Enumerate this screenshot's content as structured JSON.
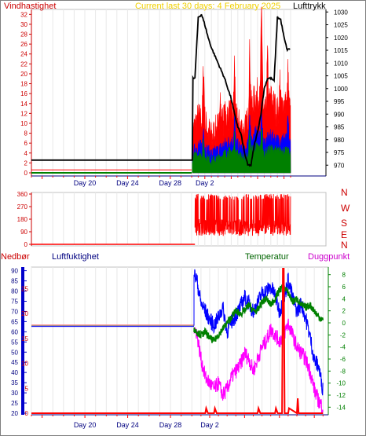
{
  "chart_data": [
    {
      "type": "line",
      "title": "Current last 30 days: 4 February 2025",
      "ylabel_left": "Vindhastighet",
      "ylabel_right": "Lufttrykk",
      "left_ticks": [
        0,
        2,
        4,
        6,
        8,
        10,
        12,
        14,
        16,
        18,
        20,
        22,
        24,
        26,
        28,
        30,
        32
      ],
      "right_ticks": [
        970,
        975,
        980,
        985,
        990,
        995,
        1000,
        1005,
        1010,
        1015,
        1020,
        1025,
        1030
      ],
      "x_tick_labels": [
        "Day 20",
        "Day 24",
        "Day 28",
        "Day 2"
      ],
      "xlim_days": [
        0,
        30
      ],
      "ylim_left": [
        0,
        33
      ],
      "ylim_right": [
        967,
        1031
      ],
      "series": [
        {
          "role": "pressure",
          "color": "#000000",
          "x": [
            0,
            15.1,
            15.1,
            15.5,
            16,
            16.5,
            17,
            17.5,
            18,
            18.5,
            19,
            19.5,
            20,
            20.5,
            21,
            21.5,
            22,
            22.5,
            23,
            23.5,
            24,
            24.5,
            25,
            25.5,
            26,
            26.5,
            27,
            27.5,
            28,
            28.5,
            29,
            29.5,
            30
          ],
          "y": [
            972,
            972,
            1004,
            1004,
            1028,
            1029,
            1025,
            1020,
            1016,
            1013,
            1010,
            1007,
            1004,
            1000,
            996,
            990,
            985,
            982,
            975,
            970,
            970,
            978,
            983,
            990,
            1000,
            1004,
            1004,
            1003,
            1028,
            1027,
            1020,
            1015,
            1016
          ]
        },
        {
          "role": "gust",
          "color": "#ff0000",
          "x": [
            0,
            15,
            15.1,
            16,
            17,
            18,
            19,
            20,
            21,
            22,
            23,
            24,
            25,
            26,
            27,
            28,
            29,
            30
          ],
          "y": [
            0.6,
            0.6,
            7,
            10,
            9,
            6,
            8,
            10,
            11,
            9,
            7,
            12,
            15,
            10,
            14,
            11,
            13,
            11
          ],
          "peaks": [
            [
              16.8,
              21
            ],
            [
              19.3,
              16
            ],
            [
              21.5,
              21
            ],
            [
              23.8,
              24
            ],
            [
              25.6,
              33
            ],
            [
              26.5,
              23
            ],
            [
              28.4,
              19
            ],
            [
              29.6,
              20
            ]
          ]
        },
        {
          "role": "mean-wind",
          "color": "#0000ff",
          "x": [
            0,
            15,
            15.1,
            16,
            17,
            18,
            19,
            20,
            21,
            22,
            23,
            24,
            25,
            26,
            27,
            28,
            29,
            30
          ],
          "y": [
            0.2,
            0.2,
            3.5,
            5,
            4.5,
            3.2,
            4,
            5.2,
            6,
            5,
            3.5,
            6.5,
            8,
            5.5,
            7,
            6,
            6.5,
            5.5
          ],
          "peaks": [
            [
              16.8,
              9
            ],
            [
              21.5,
              11
            ],
            [
              23.8,
              12
            ],
            [
              25.6,
              13
            ],
            [
              29.6,
              11
            ]
          ]
        },
        {
          "role": "min-wind",
          "color": "#008000",
          "x": [
            0,
            15,
            15.1,
            16,
            17,
            18,
            19,
            20,
            21,
            22,
            23,
            24,
            25,
            26,
            27,
            28,
            29,
            30
          ],
          "y": [
            0,
            0,
            2.5,
            3.5,
            3,
            2,
            2.5,
            3.5,
            4,
            3.5,
            2.2,
            4.2,
            5,
            3.5,
            4.5,
            4,
            4.2,
            3.5
          ],
          "peaks": [
            [
              16.8,
              6
            ],
            [
              21.5,
              7
            ],
            [
              23.8,
              8
            ],
            [
              25.6,
              9
            ]
          ]
        }
      ]
    },
    {
      "type": "scatter",
      "title": "",
      "right_labels": [
        "N",
        "W",
        "S",
        "E",
        "N"
      ],
      "left_ticks": [
        0,
        90,
        180,
        270,
        360
      ],
      "ylim": [
        0,
        360
      ],
      "xlim_days": [
        0,
        30
      ],
      "series": [
        {
          "role": "wind-direction",
          "color": "#ff0000",
          "flat_value": 0,
          "flat_until_day": 15.5,
          "band_start_day": 15.5,
          "band_low": 60,
          "band_high": 360,
          "band_typical": 120
        }
      ]
    },
    {
      "type": "line",
      "title": "",
      "labels": {
        "precip": "Nedbør",
        "humidity": "Luftfuktighet",
        "temperature": "Temperatur",
        "dewpoint": "Duggpunkt"
      },
      "humidity_ticks": [
        20,
        25,
        30,
        35,
        40,
        45,
        50,
        55,
        60,
        65,
        70,
        75,
        80,
        85,
        90
      ],
      "precip_ticks": [
        0,
        5,
        10,
        15,
        20,
        25
      ],
      "temp_ticks": [
        -14,
        -12,
        -10,
        -8,
        -6,
        -4,
        -2,
        0,
        2,
        4,
        6,
        8
      ],
      "x_tick_labels": [
        "Day 20",
        "Day 24",
        "Day 28",
        "Day 2"
      ],
      "xlim_days": [
        0,
        30
      ],
      "ylim_humidity": [
        20,
        91
      ],
      "ylim_temp": [
        -15,
        9
      ],
      "ylim_precip": [
        0,
        29
      ],
      "series": [
        {
          "role": "humidity",
          "color": "#0000ff",
          "x": [
            0,
            15.2,
            15.2,
            15.5,
            16,
            16.5,
            17,
            17.5,
            18,
            18.5,
            19,
            19.5,
            20,
            20.5,
            21,
            21.5,
            22,
            22.5,
            23,
            23.5,
            24,
            24.5,
            25,
            25.5,
            26,
            26.5,
            27,
            27.5,
            28,
            28.5,
            29,
            29.5,
            30
          ],
          "y": [
            63,
            63,
            88,
            86,
            74,
            70,
            66,
            63,
            67,
            72,
            60,
            65,
            68,
            72,
            77,
            74,
            70,
            74,
            79,
            80,
            82,
            78,
            70,
            75,
            86,
            77,
            70,
            74,
            67,
            58,
            46,
            43,
            31
          ]
        },
        {
          "role": "temperature",
          "color": "#008000",
          "x": [
            15.2,
            15.5,
            16,
            16.5,
            17,
            17.5,
            18,
            18.5,
            19,
            19.5,
            20,
            20.5,
            21,
            21.5,
            22,
            22.5,
            23,
            23.5,
            24,
            24.5,
            25,
            25.5,
            26,
            26.5,
            27,
            27.5,
            28,
            28.5,
            29,
            29.5,
            30
          ],
          "y": [
            -1,
            -1.5,
            -2,
            -1.5,
            -2.5,
            -3,
            -2,
            -1,
            0,
            1,
            2,
            1.5,
            2,
            3,
            2,
            2,
            3.5,
            4,
            3,
            4,
            5.5,
            6,
            5,
            3.5,
            4,
            3,
            2.5,
            3,
            2,
            1,
            0.5
          ]
        },
        {
          "role": "dewpoint",
          "color": "#ff00ff",
          "x": [
            15.2,
            15.5,
            16,
            16.5,
            17,
            17.5,
            18,
            18.5,
            19,
            19.5,
            20,
            20.5,
            21,
            21.5,
            22,
            22.5,
            23,
            23.5,
            24,
            24.5,
            25,
            25.5,
            26,
            26.5,
            27,
            27.5,
            28,
            28.5,
            29,
            29.5,
            30
          ],
          "y": [
            -1,
            -1.5,
            -6,
            -9,
            -10,
            -11,
            -10,
            -12,
            -11,
            -9,
            -8,
            -7,
            -5,
            -6,
            -8,
            -6,
            -4,
            -3,
            -1,
            -2,
            -3,
            -2,
            0,
            -2,
            -4,
            -5,
            -6,
            -8,
            -11,
            -13,
            -14
          ]
        },
        {
          "role": "precipitation",
          "color": "#ff0000",
          "x": [
            0,
            15.2,
            16.5,
            16.6,
            16.8,
            17.5,
            17.6,
            17.8,
            22.5,
            22.6,
            22.8,
            24.5,
            24.6,
            24.8,
            25.3,
            25.4,
            25.5,
            25.6,
            26.0,
            26.1,
            27,
            27.1,
            27.2,
            28,
            30
          ],
          "y": [
            0,
            0,
            0,
            1,
            0,
            0,
            1,
            0,
            0,
            1,
            0,
            0,
            1,
            0,
            0,
            29,
            29,
            0,
            0,
            1,
            0,
            3,
            0,
            0,
            0
          ]
        }
      ]
    }
  ]
}
